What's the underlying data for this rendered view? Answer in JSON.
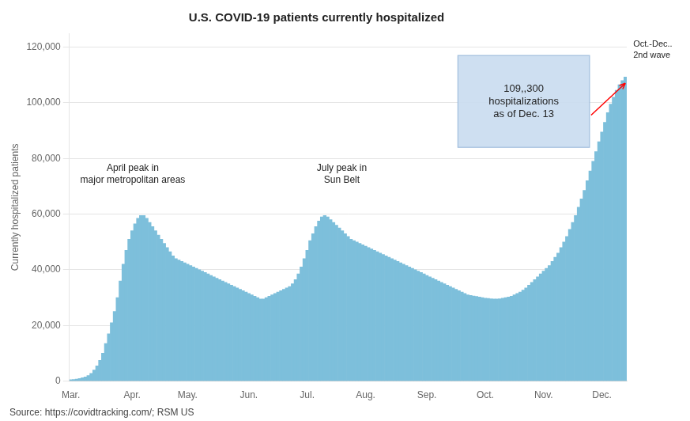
{
  "chart_data": {
    "type": "bar",
    "title": "U.S. COVID-19 patients currently hospitalized",
    "ylabel": "Currently hospitalized patients",
    "source": "Source: https://covidtracking.com/; RSM US",
    "annotations": [
      "April peak in\nmajor metropolitan areas",
      "July peak in\nSun Belt",
      "109,,300\nhospitalizations\nas of Dec. 13",
      "Oct.-Dec..\n2nd wave"
    ],
    "color": "#7DBFDB",
    "ylim": [
      0,
      125000
    ],
    "yticks": [
      0,
      {
        "value": 20000,
        "label": "20,000"
      },
      {
        "value": 40000,
        "label": "40,000"
      },
      {
        "value": 60000,
        "label": "60,000"
      },
      {
        "value": 80000,
        "label": "80,000"
      },
      {
        "value": 100000,
        "label": "100,000"
      },
      {
        "value": 120000,
        "label": "120,000"
      }
    ],
    "grid": "y",
    "categories": [
      "Mar.",
      null,
      null,
      null,
      null,
      null,
      null,
      null,
      null,
      null,
      null,
      null,
      null,
      null,
      null,
      null,
      null,
      null,
      null,
      null,
      null,
      "Apr.",
      null,
      null,
      null,
      null,
      null,
      null,
      null,
      null,
      null,
      null,
      null,
      null,
      null,
      null,
      null,
      null,
      null,
      null,
      "May.",
      null,
      null,
      null,
      null,
      null,
      null,
      null,
      null,
      null,
      null,
      null,
      null,
      null,
      null,
      null,
      null,
      null,
      null,
      null,
      null,
      "Jun.",
      null,
      null,
      null,
      null,
      null,
      null,
      null,
      null,
      null,
      null,
      null,
      null,
      null,
      null,
      null,
      null,
      null,
      null,
      null,
      "Jul.",
      null,
      null,
      null,
      null,
      null,
      null,
      null,
      null,
      null,
      null,
      null,
      null,
      null,
      null,
      null,
      null,
      null,
      null,
      null,
      "Aug.",
      null,
      null,
      null,
      null,
      null,
      null,
      null,
      null,
      null,
      null,
      null,
      null,
      null,
      null,
      null,
      null,
      null,
      null,
      null,
      null,
      "Sep.",
      null,
      null,
      null,
      null,
      null,
      null,
      null,
      null,
      null,
      null,
      null,
      null,
      null,
      null,
      null,
      null,
      null,
      null,
      null,
      "Oct.",
      null,
      null,
      null,
      null,
      null,
      null,
      null,
      null,
      null,
      null,
      null,
      null,
      null,
      null,
      null,
      null,
      null,
      null,
      null,
      "Nov.",
      null,
      null,
      null,
      null,
      null,
      null,
      null,
      null,
      null,
      null,
      null,
      null,
      null,
      null,
      null,
      null,
      null,
      null,
      null,
      "Dec.",
      null,
      null,
      null,
      null,
      null,
      null,
      null,
      null
    ],
    "values": [
      500,
      600,
      700,
      900,
      1200,
      1500,
      2000,
      2800,
      4000,
      5500,
      7500,
      10000,
      13500,
      17000,
      21000,
      25000,
      30000,
      36000,
      42000,
      47000,
      51000,
      54000,
      56500,
      58500,
      59500,
      59500,
      58500,
      57000,
      55500,
      54000,
      52500,
      51000,
      49500,
      48000,
      46500,
      45000,
      44000,
      43500,
      43000,
      42500,
      42000,
      41500,
      41000,
      40500,
      40000,
      39500,
      39000,
      38500,
      38000,
      37500,
      37000,
      36500,
      36000,
      35500,
      35000,
      34500,
      34000,
      33500,
      33000,
      32500,
      32000,
      31500,
      31000,
      30500,
      30000,
      29500,
      29500,
      30000,
      30500,
      31000,
      31500,
      32000,
      32500,
      33000,
      33500,
      34000,
      35000,
      36500,
      38500,
      41000,
      44000,
      47000,
      50500,
      53000,
      55500,
      57500,
      59000,
      59500,
      59000,
      58000,
      57000,
      56000,
      55000,
      54000,
      53000,
      52000,
      51000,
      50500,
      50000,
      49500,
      49000,
      48500,
      48000,
      47500,
      47000,
      46500,
      46000,
      45500,
      45000,
      44500,
      44000,
      43500,
      43000,
      42500,
      42000,
      41500,
      41000,
      40500,
      40000,
      39500,
      39000,
      38500,
      38000,
      37500,
      37000,
      36500,
      36000,
      35500,
      35000,
      34500,
      34000,
      33500,
      33000,
      32500,
      32000,
      31500,
      31000,
      30800,
      30600,
      30400,
      30200,
      30000,
      29800,
      29700,
      29600,
      29500,
      29500,
      29600,
      29800,
      30000,
      30200,
      30500,
      31000,
      31500,
      32000,
      32700,
      33500,
      34500,
      35500,
      36500,
      37500,
      38500,
      39500,
      40500,
      41500,
      43000,
      44500,
      46000,
      48000,
      50000,
      52000,
      54500,
      57000,
      59500,
      62500,
      65500,
      68500,
      72000,
      75500,
      79000,
      82500,
      86000,
      89500,
      93000,
      96500,
      99500,
      102000,
      104500,
      106500,
      108000,
      109300
    ]
  }
}
